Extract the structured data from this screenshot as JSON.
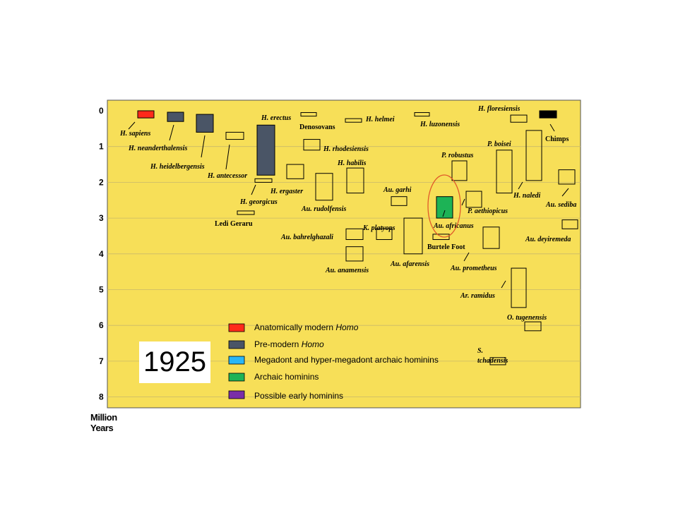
{
  "chart_data": {
    "type": "range-bar",
    "ylabel": "Million Years",
    "ylim": [
      0,
      8
    ],
    "yticks": [
      "0",
      "1",
      "2",
      "3",
      "4",
      "5",
      "6",
      "7",
      "8"
    ],
    "grid": true,
    "background": "#f7df58",
    "year": "1925",
    "categories": [
      {
        "name": "Anatomically modern Homo",
        "color": "#ff2a1a"
      },
      {
        "name": "Pre-modern Homo",
        "color": "#4a5566"
      },
      {
        "name": "Megadont and hyper-megadont archaic hominins",
        "color": "#29b6f6"
      },
      {
        "name": "Archaic hominins",
        "color": "#1db356"
      },
      {
        "name": "Possible early hominins",
        "color": "#7a2ea8"
      },
      {
        "name": "Chimps",
        "color": "#000000"
      }
    ],
    "species": [
      {
        "name": "H. sapiens",
        "start": 0.2,
        "end": 0.0,
        "fill": "#ff2a1a"
      },
      {
        "name": "H. neanderthalensis",
        "start": 0.3,
        "end": 0.04,
        "fill": "#4a5566"
      },
      {
        "name": "H. heidelbergensis",
        "start": 0.6,
        "end": 0.1,
        "fill": "#4a5566"
      },
      {
        "name": "H. antecessor",
        "start": 0.8,
        "end": 0.6,
        "fill": null
      },
      {
        "name": "H. erectus",
        "start": 1.8,
        "end": 0.4,
        "fill": "#4a5566"
      },
      {
        "name": "H. georgicus",
        "start": 2.0,
        "end": 1.9,
        "fill": null
      },
      {
        "name": "Ledi Geraru",
        "start": 2.9,
        "end": 2.8,
        "fill": null
      },
      {
        "name": "Denosovans",
        "start": 0.15,
        "end": 0.05,
        "fill": null
      },
      {
        "name": "H. helmei",
        "start": 0.32,
        "end": 0.22,
        "fill": null
      },
      {
        "name": "H. luzonensis",
        "start": 0.15,
        "end": 0.05,
        "fill": null
      },
      {
        "name": "H. rhodesiensis",
        "start": 1.1,
        "end": 0.8,
        "fill": null
      },
      {
        "name": "H. ergaster",
        "start": 1.9,
        "end": 1.5,
        "fill": null
      },
      {
        "name": "Au. rudolfensis",
        "start": 2.5,
        "end": 1.75,
        "fill": null
      },
      {
        "name": "H. habilis",
        "start": 2.3,
        "end": 1.6,
        "fill": null
      },
      {
        "name": "Au. garhi",
        "start": 2.65,
        "end": 2.4,
        "fill": null
      },
      {
        "name": "Au. bahrelghazali",
        "start": 3.6,
        "end": 3.3,
        "fill": null
      },
      {
        "name": "K. platyops",
        "start": 3.6,
        "end": 3.3,
        "fill": null
      },
      {
        "name": "Au. anamensis",
        "start": 4.2,
        "end": 3.8,
        "fill": null
      },
      {
        "name": "Au. afarensis",
        "start": 4.0,
        "end": 3.0,
        "fill": null
      },
      {
        "name": "Au. africanus",
        "start": 3.0,
        "end": 2.4,
        "fill": "#1db356",
        "highlight": true
      },
      {
        "name": "Burtele Foot",
        "start": 3.6,
        "end": 3.45,
        "fill": null
      },
      {
        "name": "P. robustus",
        "start": 1.95,
        "end": 1.4,
        "fill": null
      },
      {
        "name": "P. aethiopicus",
        "start": 2.7,
        "end": 2.25,
        "fill": null
      },
      {
        "name": "Au. prometheus",
        "start": 3.85,
        "end": 3.25,
        "fill": null
      },
      {
        "name": "P. boisei",
        "start": 2.3,
        "end": 1.1,
        "fill": null
      },
      {
        "name": "H. naledi",
        "start": 1.95,
        "end": 0.55,
        "fill": null
      },
      {
        "name": "H. floresiensis",
        "start": 0.32,
        "end": 0.12,
        "fill": null
      },
      {
        "name": "Chimps",
        "start": 0.2,
        "end": 0.0,
        "fill": "#000000"
      },
      {
        "name": "Au. sediba",
        "start": 2.05,
        "end": 1.65,
        "fill": null
      },
      {
        "name": "Au. deyiremeda",
        "start": 3.3,
        "end": 3.05,
        "fill": null
      },
      {
        "name": "Ar. ramidus",
        "start": 5.5,
        "end": 4.4,
        "fill": null
      },
      {
        "name": "O. tugenensis",
        "start": 6.15,
        "end": 5.9,
        "fill": null
      },
      {
        "name": "S. tchadensis",
        "start": 7.1,
        "end": 6.9,
        "fill": null
      }
    ]
  }
}
